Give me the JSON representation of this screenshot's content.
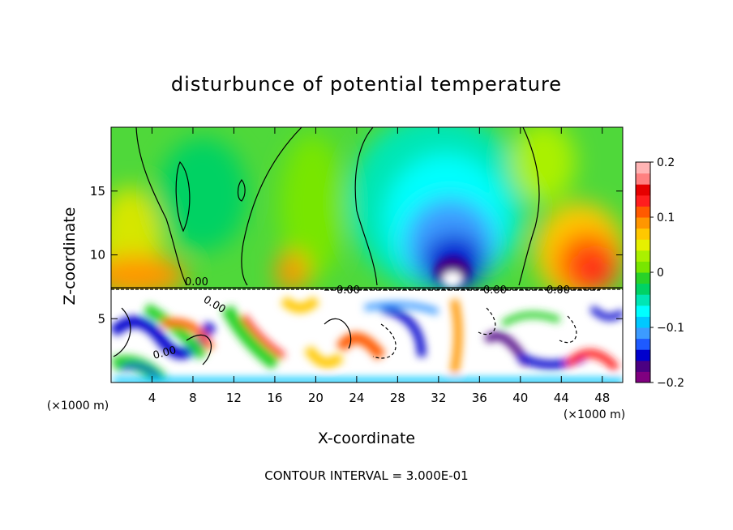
{
  "chart_data": {
    "type": "heatmap",
    "title": "disturbunce of potential temperature",
    "xlabel": "X-coordinate",
    "ylabel": "Z-coordinate",
    "xunit_left": "(×1000 m)",
    "xunit_right": "(×1000 m)",
    "xlim": [
      0,
      50
    ],
    "ylim": [
      0,
      20
    ],
    "xticks": [
      4,
      8,
      12,
      16,
      20,
      24,
      28,
      32,
      36,
      40,
      44,
      48
    ],
    "yticks": [
      5,
      10,
      15
    ],
    "colorbar": {
      "min": -0.2,
      "max": 0.2,
      "tick_values": [
        0.2,
        0.1,
        0,
        -0.1,
        -0.2
      ],
      "tick_labels": [
        "0.2",
        "0.1",
        "0",
        "−0.1",
        "−0.2"
      ],
      "colors": [
        "#800080",
        "#4b0082",
        "#0000cd",
        "#1e5aff",
        "#3c9bff",
        "#00c8ff",
        "#00ffff",
        "#00e6b4",
        "#00d264",
        "#28d228",
        "#78e600",
        "#aaf000",
        "#e6f000",
        "#ffc800",
        "#ff9600",
        "#ff5a00",
        "#ff1e1e",
        "#e60000",
        "#ff8080",
        "#ffb4b4"
      ]
    },
    "contour_labels": [
      "0.00",
      "0.00",
      "0.00",
      "0.00",
      "0.00",
      "0.00"
    ],
    "contour_interval_text": "CONTOUR INTERVAL = 3.000E-01"
  }
}
